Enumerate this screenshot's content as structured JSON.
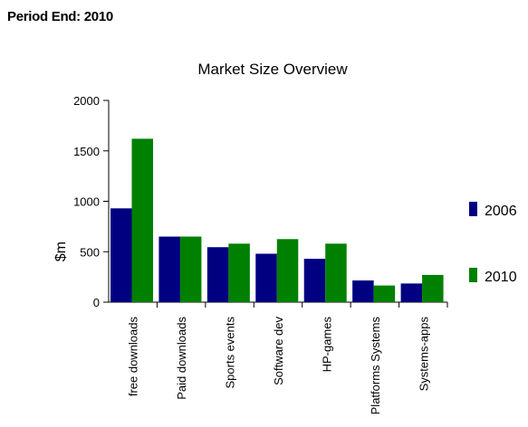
{
  "header": {
    "period_label": "Period End: 2010"
  },
  "chart_data": {
    "type": "bar",
    "title": "Market Size Overview",
    "xlabel": "",
    "ylabel": "$m",
    "ylim": [
      0,
      2000
    ],
    "yticks": [
      0,
      500,
      1000,
      1500,
      2000
    ],
    "categories": [
      "free downloads",
      "Paid downloads",
      "Sports events",
      "Software dev",
      "HP-games",
      "Platforms Systems",
      "Systems-apps"
    ],
    "series": [
      {
        "name": "2006",
        "color": "#000080",
        "values": [
          930,
          650,
          545,
          480,
          430,
          215,
          185
        ]
      },
      {
        "name": "2010",
        "color": "#008000",
        "values": [
          1620,
          650,
          580,
          625,
          580,
          165,
          270
        ]
      }
    ],
    "legend_position": "right",
    "grid": false
  }
}
